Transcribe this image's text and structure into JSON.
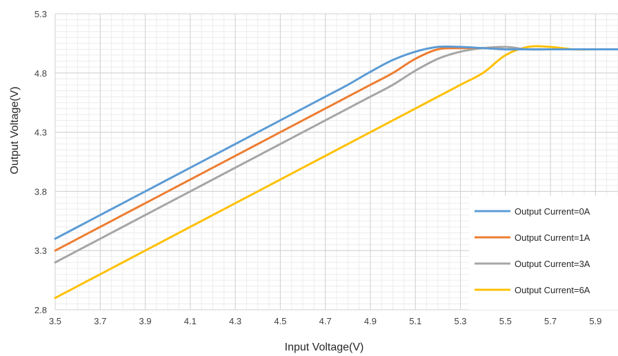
{
  "chart_data": {
    "type": "line",
    "title": "",
    "xlabel": "Input Voltage(V)",
    "ylabel": "Output Voltage(V)",
    "xlim": [
      3.5,
      6.0
    ],
    "ylim": [
      2.8,
      5.3
    ],
    "x_ticks": [
      "3.5",
      "3.7",
      "3.9",
      "4.1",
      "4.3",
      "4.5",
      "4.7",
      "4.9",
      "5.1",
      "5.3",
      "5.5",
      "5.7",
      "5.9"
    ],
    "y_ticks": [
      "2.8",
      "3.3",
      "3.8",
      "4.3",
      "4.8",
      "5.3"
    ],
    "grid": true,
    "legend_position": "bottom-right",
    "x": [
      3.5,
      3.6,
      3.7,
      3.8,
      3.9,
      4.0,
      4.1,
      4.2,
      4.3,
      4.4,
      4.5,
      4.6,
      4.7,
      4.8,
      4.9,
      5.0,
      5.1,
      5.2,
      5.3,
      5.4,
      5.5,
      5.6,
      5.7,
      5.8,
      5.9,
      6.0
    ],
    "series": [
      {
        "name": "Output Current=0A",
        "color": "#5B9BD5",
        "values": [
          3.4,
          3.5,
          3.6,
          3.7,
          3.8,
          3.9,
          4.0,
          4.1,
          4.2,
          4.3,
          4.4,
          4.5,
          4.6,
          4.7,
          4.81,
          4.91,
          4.98,
          5.02,
          5.02,
          5.01,
          5.0,
          5.0,
          5.0,
          5.0,
          5.0,
          5.0
        ]
      },
      {
        "name": "Output Current=1A",
        "color": "#ED7D31",
        "values": [
          3.3,
          3.4,
          3.5,
          3.6,
          3.7,
          3.8,
          3.9,
          4.0,
          4.1,
          4.2,
          4.3,
          4.4,
          4.5,
          4.6,
          4.7,
          4.8,
          4.92,
          5.0,
          5.01,
          5.01,
          5.0,
          5.0,
          5.0,
          5.0,
          5.0,
          5.0
        ]
      },
      {
        "name": "Output Current=3A",
        "color": "#A5A5A5",
        "values": [
          3.2,
          3.3,
          3.4,
          3.5,
          3.6,
          3.7,
          3.8,
          3.9,
          4.0,
          4.1,
          4.2,
          4.3,
          4.4,
          4.5,
          4.6,
          4.7,
          4.82,
          4.92,
          4.98,
          5.01,
          5.02,
          5.0,
          5.0,
          5.0,
          5.0,
          5.0
        ]
      },
      {
        "name": "Output Current=6A",
        "color": "#FFC000",
        "values": [
          2.9,
          3.0,
          3.1,
          3.2,
          3.3,
          3.4,
          3.5,
          3.6,
          3.7,
          3.8,
          3.9,
          4.0,
          4.1,
          4.2,
          4.3,
          4.4,
          4.5,
          4.6,
          4.7,
          4.8,
          4.95,
          5.02,
          5.02,
          5.0,
          5.0,
          5.0
        ]
      }
    ]
  }
}
